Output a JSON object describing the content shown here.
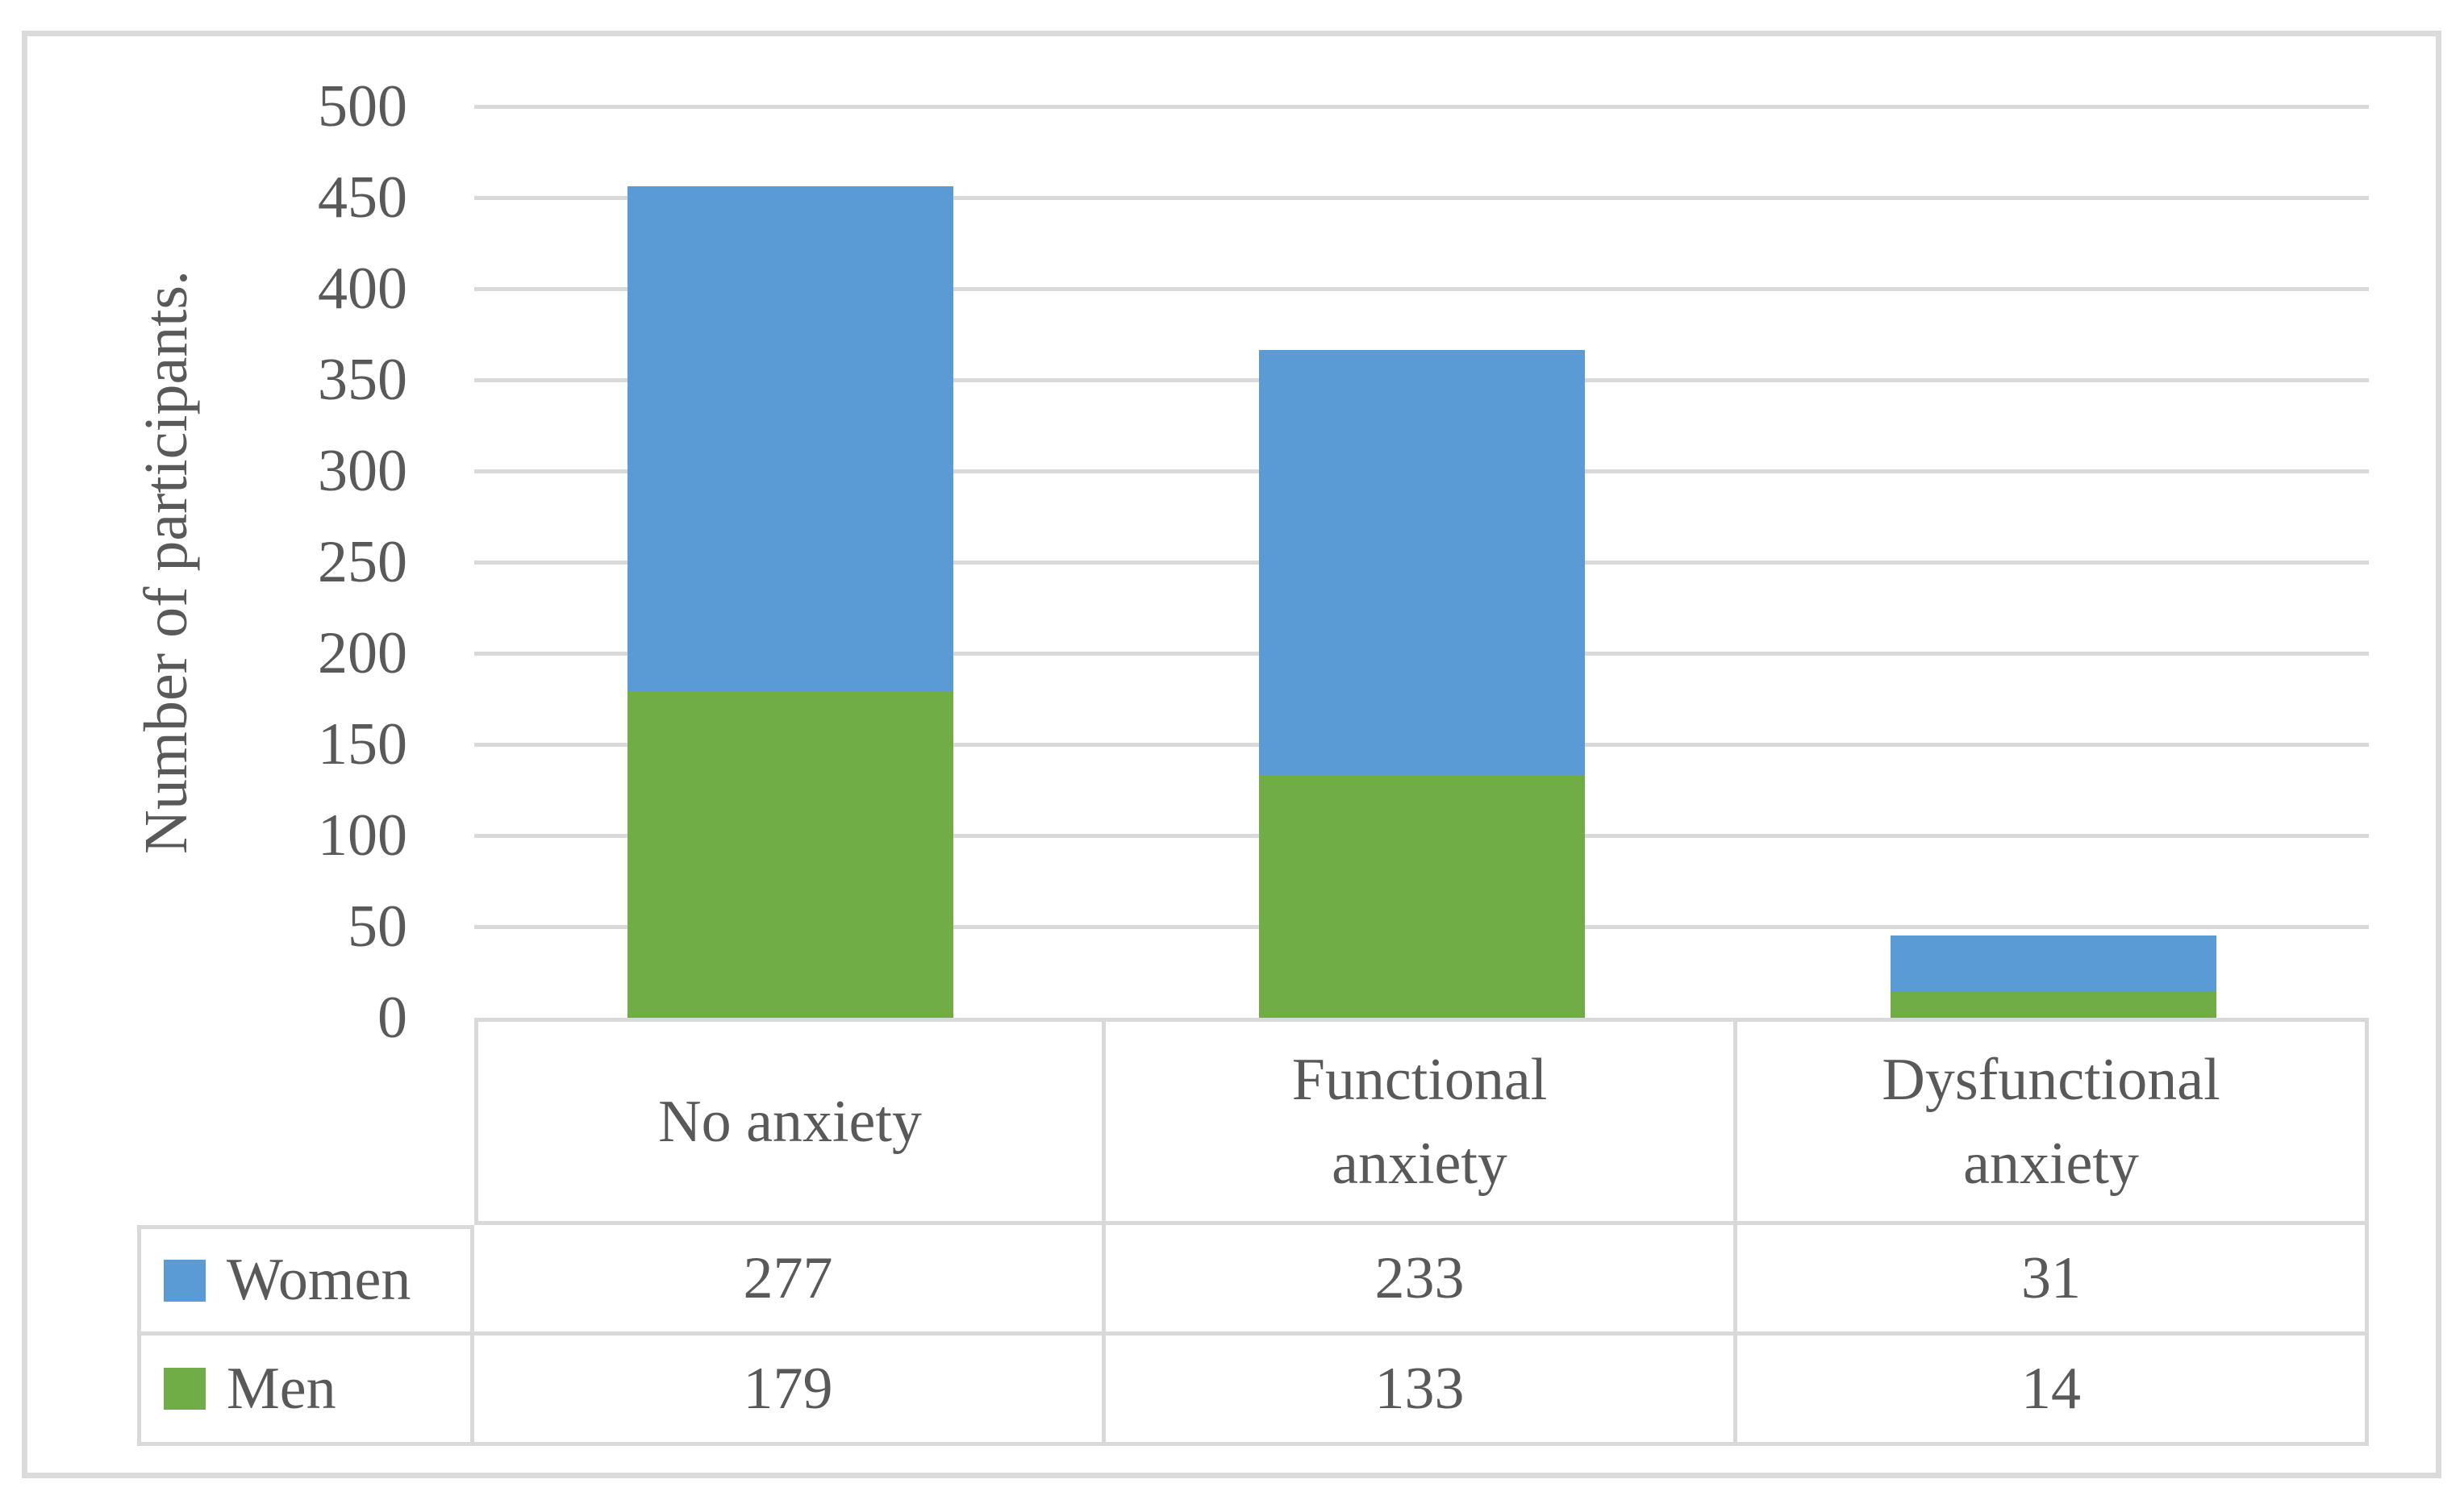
{
  "chart_data": {
    "type": "bar",
    "stacked": true,
    "title": "",
    "xlabel": "",
    "ylabel": "Number of participants.",
    "ylim": [
      0,
      500
    ],
    "ytick_step": 50,
    "yticks": [
      0,
      50,
      100,
      150,
      200,
      250,
      300,
      350,
      400,
      450,
      500
    ],
    "grid": "horizontal-only",
    "legend_position": "data-table-left-column",
    "categories": [
      "No anxiety",
      "Functional\nanxiety",
      "Dysfunctional\nanxiety"
    ],
    "series": [
      {
        "name": "Women",
        "color": "#5B9BD5",
        "values": [
          277,
          233,
          31
        ]
      },
      {
        "name": "Men",
        "color": "#70AD47",
        "values": [
          179,
          133,
          14
        ]
      }
    ],
    "colors": {
      "text": "#595959",
      "gridline": "#D9D9D9",
      "table_border": "#D9D9D9",
      "figure_border": "#DBDBDB"
    }
  }
}
